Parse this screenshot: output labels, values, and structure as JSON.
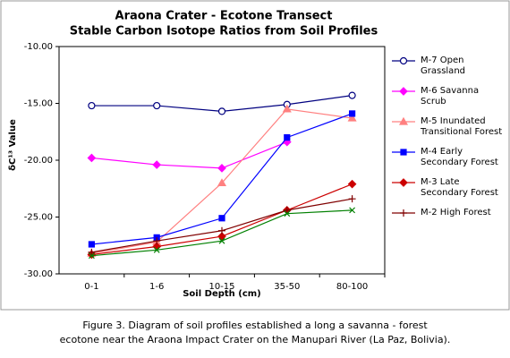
{
  "chart_data": {
    "type": "line",
    "title": [
      "Araona Crater - Ecotone Transect",
      "Stable Carbon Isotope Ratios from Soil Profiles"
    ],
    "x_label": "Soil Depth (cm)",
    "y_label": "δC¹³ Value",
    "categories": [
      "0-1",
      "1-6",
      "10-15",
      "35-50",
      "80-100"
    ],
    "ylim": [
      -30,
      -10
    ],
    "yticks": [
      {
        "value": -30,
        "label": "-30.00"
      },
      {
        "value": -25,
        "label": "-25.00"
      },
      {
        "value": -20,
        "label": "-20.00"
      },
      {
        "value": -15,
        "label": "-15.00"
      },
      {
        "value": -10,
        "label": "-10.00"
      }
    ],
    "series": [
      {
        "name": "M-7 Open Grassland",
        "color": "#000080",
        "marker": "circle",
        "values": [
          -15.2,
          -15.2,
          -15.7,
          -15.1,
          -14.3
        ]
      },
      {
        "name": "M-6 Savanna Scrub",
        "color": "#ff00ff",
        "marker": "diamond",
        "values": [
          -19.8,
          -20.4,
          -20.7,
          -18.4,
          null
        ]
      },
      {
        "name": "M-5 Inundated Transitional Forest",
        "color": "#ff8080",
        "marker": "triangle",
        "values": [
          -28.2,
          -27.2,
          -22.0,
          -15.5,
          -16.3
        ]
      },
      {
        "name": "M-4 Early Secondary Forest",
        "color": "#0000ff",
        "marker": "square",
        "values": [
          -27.4,
          -26.8,
          -25.1,
          -18.0,
          -15.9
        ]
      },
      {
        "name": "M-3 Late Secondary Forest",
        "color": "#cc0000",
        "marker": "diamond",
        "values": [
          -28.3,
          -27.6,
          -26.7,
          -24.4,
          -22.1
        ]
      },
      {
        "name": "M-2 High Forest",
        "color": "#800000",
        "marker": "plus",
        "values": [
          -28.1,
          -27.1,
          -26.2,
          -24.4,
          -23.4
        ]
      },
      {
        "color": "#008000",
        "marker": "cross",
        "values": [
          -28.4,
          -27.9,
          -27.1,
          -24.7,
          -24.4
        ]
      }
    ]
  },
  "caption": [
    "Figure 3. Diagram of soil profiles established a long a savanna - forest",
    "ecotone near the Araona Impact Crater on the Manupari River (La Paz, Bolivia)."
  ]
}
